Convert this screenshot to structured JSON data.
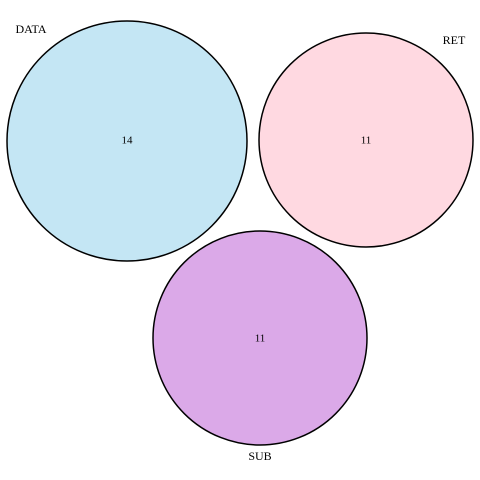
{
  "sets": [
    {
      "key": "data",
      "name": "DATA",
      "count": "14",
      "fill": "#c4e6f4"
    },
    {
      "key": "ret",
      "name": "RET",
      "count": "11",
      "fill": "#ffd9e1"
    },
    {
      "key": "sub",
      "name": "SUB",
      "count": "11",
      "fill": "#dba9e8"
    }
  ]
}
